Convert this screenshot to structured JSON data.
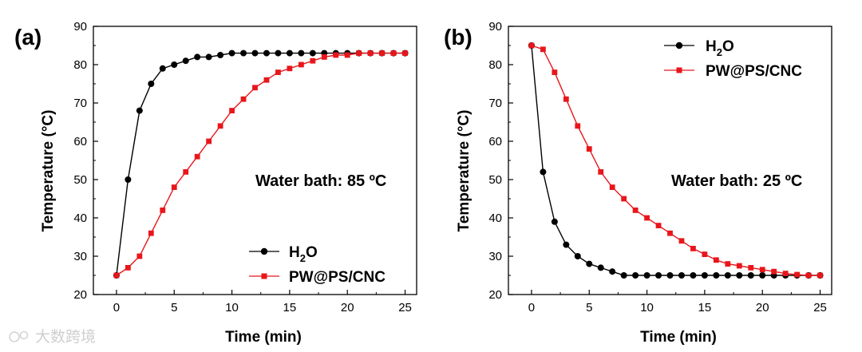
{
  "watermark": "大数跨境",
  "chart_data": [
    {
      "type": "line",
      "panel_label": "(a)",
      "xlabel": "Time (min)",
      "ylabel": "Temperature (°C)",
      "xlim": [
        -2,
        26
      ],
      "ylim": [
        20,
        90
      ],
      "xticks": [
        0,
        5,
        10,
        15,
        20,
        25
      ],
      "yticks": [
        20,
        30,
        40,
        50,
        60,
        70,
        80,
        90
      ],
      "annotation": "Water bath: 85 ºC",
      "legend_position": "bottom-right",
      "series": [
        {
          "name": "H",
          "name_sub": "2",
          "name_tail": "O",
          "color": "#000000",
          "marker": "circle",
          "x": [
            0,
            1,
            2,
            3,
            4,
            5,
            6,
            7,
            8,
            9,
            10,
            11,
            12,
            13,
            14,
            15,
            16,
            17,
            18,
            19,
            20,
            21,
            22,
            23,
            24,
            25
          ],
          "values": [
            25,
            50,
            68,
            75,
            79,
            80,
            81,
            82,
            82,
            82.5,
            83,
            83,
            83,
            83,
            83,
            83,
            83,
            83,
            83,
            83,
            83,
            83,
            83,
            83,
            83,
            83
          ]
        },
        {
          "name": "PW@PS/CNC",
          "color": "#e8161b",
          "marker": "square",
          "x": [
            0,
            1,
            2,
            3,
            4,
            5,
            6,
            7,
            8,
            9,
            10,
            11,
            12,
            13,
            14,
            15,
            16,
            17,
            18,
            19,
            20,
            21,
            22,
            23,
            24,
            25
          ],
          "values": [
            25,
            27,
            30,
            36,
            42,
            48,
            52,
            56,
            60,
            64,
            68,
            71,
            74,
            76,
            78,
            79,
            80,
            81,
            82,
            82.5,
            82.5,
            83,
            83,
            83,
            83,
            83
          ]
        }
      ]
    },
    {
      "type": "line",
      "panel_label": "(b)",
      "xlabel": "Time (min)",
      "ylabel": "Temperature (°C)",
      "xlim": [
        -2,
        26
      ],
      "ylim": [
        20,
        90
      ],
      "xticks": [
        0,
        5,
        10,
        15,
        20,
        25
      ],
      "yticks": [
        20,
        30,
        40,
        50,
        60,
        70,
        80,
        90
      ],
      "annotation": "Water bath: 25 ºC",
      "legend_position": "top-center",
      "series": [
        {
          "name": "H",
          "name_sub": "2",
          "name_tail": "O",
          "color": "#000000",
          "marker": "circle",
          "x": [
            0,
            1,
            2,
            3,
            4,
            5,
            6,
            7,
            8,
            9,
            10,
            11,
            12,
            13,
            14,
            15,
            16,
            17,
            18,
            19,
            20,
            21,
            22,
            23,
            24,
            25
          ],
          "values": [
            85,
            52,
            39,
            33,
            30,
            28,
            27,
            26,
            25,
            25,
            25,
            25,
            25,
            25,
            25,
            25,
            25,
            25,
            25,
            25,
            25,
            25,
            25,
            25,
            25,
            25
          ]
        },
        {
          "name": "PW@PS/CNC",
          "color": "#e8161b",
          "marker": "square",
          "x": [
            0,
            1,
            2,
            3,
            4,
            5,
            6,
            7,
            8,
            9,
            10,
            11,
            12,
            13,
            14,
            15,
            16,
            17,
            18,
            19,
            20,
            21,
            22,
            23,
            24,
            25
          ],
          "values": [
            85,
            84,
            78,
            71,
            64,
            58,
            52,
            48,
            45,
            42,
            40,
            38,
            36,
            34,
            32,
            30.5,
            29,
            28,
            27.5,
            27,
            26.5,
            26,
            25.5,
            25.2,
            25,
            25
          ]
        }
      ]
    }
  ]
}
